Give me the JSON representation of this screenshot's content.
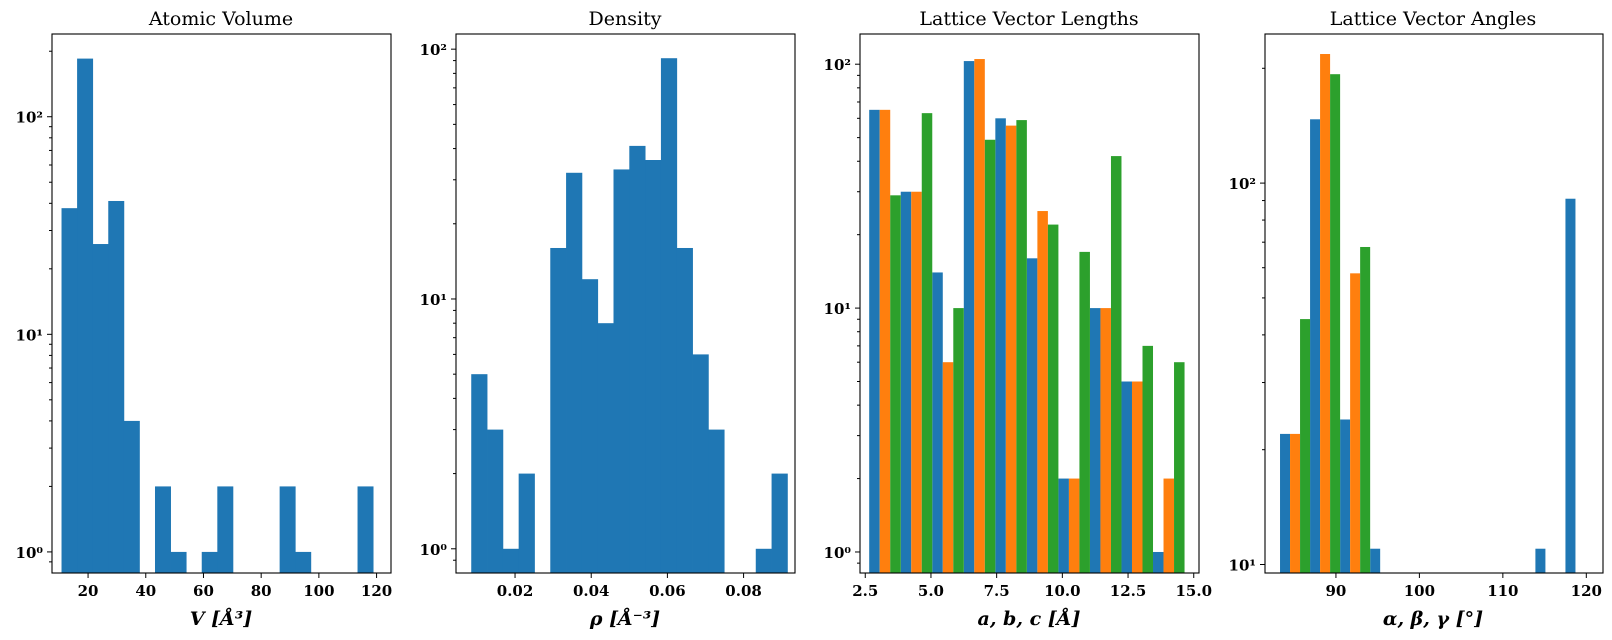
{
  "colors": {
    "blue": "#1f77b4",
    "orange": "#ff7f0e",
    "green": "#2ca02c"
  },
  "chart_data": [
    {
      "type": "bar",
      "title": "Atomic Volume",
      "xlabel": "V [Å³]",
      "yscale": "log",
      "xlim": [
        7.5,
        125
      ],
      "ylim": [
        0.8,
        240
      ],
      "xticks": [
        20,
        40,
        60,
        80,
        100,
        120
      ],
      "xtick_labels": [
        "20",
        "40",
        "60",
        "80",
        "100",
        "120"
      ],
      "yticks": [
        1,
        10,
        100
      ],
      "ytick_labels": [
        "10⁰",
        "10¹",
        "10²"
      ],
      "bin_width": 5.4,
      "series": [
        {
          "color": "blue",
          "bins": [
            {
              "x": 10.8,
              "v": 38
            },
            {
              "x": 16.2,
              "v": 185
            },
            {
              "x": 21.6,
              "v": 26
            },
            {
              "x": 27.0,
              "v": 41
            },
            {
              "x": 32.4,
              "v": 4
            },
            {
              "x": 43.2,
              "v": 2
            },
            {
              "x": 48.6,
              "v": 1
            },
            {
              "x": 59.4,
              "v": 1
            },
            {
              "x": 64.8,
              "v": 2
            },
            {
              "x": 86.4,
              "v": 2
            },
            {
              "x": 91.8,
              "v": 1
            },
            {
              "x": 113.4,
              "v": 2
            }
          ]
        }
      ]
    },
    {
      "type": "bar",
      "title": "Density",
      "xlabel": "ρ [Å⁻³]",
      "yscale": "log",
      "xlim": [
        0.0045,
        0.0935
      ],
      "ylim": [
        0.8,
        115
      ],
      "xticks": [
        0.02,
        0.04,
        0.06,
        0.08
      ],
      "xtick_labels": [
        "0.02",
        "0.04",
        "0.06",
        "0.08"
      ],
      "yticks": [
        1,
        10,
        100
      ],
      "ytick_labels": [
        "10⁰",
        "10¹",
        "10²"
      ],
      "bin_width": 0.00415,
      "series": [
        {
          "color": "blue",
          "bins": [
            {
              "x": 0.0085,
              "v": 5
            },
            {
              "x": 0.01265,
              "v": 3
            },
            {
              "x": 0.0168,
              "v": 1
            },
            {
              "x": 0.02095,
              "v": 2
            },
            {
              "x": 0.02925,
              "v": 16
            },
            {
              "x": 0.0334,
              "v": 32
            },
            {
              "x": 0.03755,
              "v": 12
            },
            {
              "x": 0.0417,
              "v": 8
            },
            {
              "x": 0.04585,
              "v": 33
            },
            {
              "x": 0.05,
              "v": 41
            },
            {
              "x": 0.05415,
              "v": 36
            },
            {
              "x": 0.0583,
              "v": 92
            },
            {
              "x": 0.06245,
              "v": 16
            },
            {
              "x": 0.0666,
              "v": 6
            },
            {
              "x": 0.07075,
              "v": 3
            },
            {
              "x": 0.0832,
              "v": 1
            },
            {
              "x": 0.08735,
              "v": 2
            }
          ]
        }
      ]
    },
    {
      "type": "bar",
      "title": "Lattice Vector Lengths",
      "xlabel": "a, b, c [Å]",
      "yscale": "log",
      "xlim": [
        2.3,
        15.2
      ],
      "ylim": [
        0.82,
        133
      ],
      "xticks": [
        2.5,
        5.0,
        7.5,
        10.0,
        12.5,
        15.0
      ],
      "xtick_labels": [
        "2.5",
        "5.0",
        "7.5",
        "10.0",
        "12.5",
        "15.0"
      ],
      "yticks": [
        1,
        10,
        100
      ],
      "ytick_labels": [
        "10⁰",
        "10¹",
        "10²"
      ],
      "bin_width": 1.2,
      "bin_starts": [
        2.65,
        3.85,
        5.05,
        6.25,
        7.45,
        8.65,
        9.85,
        11.05,
        12.25,
        13.45
      ],
      "series": [
        {
          "color": "blue",
          "values": [
            65,
            30,
            14,
            103,
            60,
            16,
            2,
            10,
            5,
            1
          ]
        },
        {
          "color": "orange",
          "values": [
            65,
            30,
            6,
            105,
            56,
            25,
            2,
            10,
            5,
            2
          ]
        },
        {
          "color": "green",
          "values": [
            29,
            63,
            10,
            49,
            59,
            22,
            17,
            42,
            7,
            6
          ]
        }
      ]
    },
    {
      "type": "bar",
      "title": "Lattice Vector Angles",
      "xlabel": "α, β, γ [°]",
      "yscale": "log",
      "xlim": [
        81.5,
        122
      ],
      "ylim": [
        9.5,
        246
      ],
      "xticks": [
        90,
        100,
        110,
        120
      ],
      "xtick_labels": [
        "90",
        "100",
        "110",
        "120"
      ],
      "yticks": [
        100,
        10
      ],
      "ytick_labels": [
        "10²",
        "10¹"
      ],
      "bin_width": 3.6,
      "bin_starts": [
        83.3,
        86.9,
        90.5,
        94.1,
        113.9,
        117.5
      ],
      "series": [
        {
          "color": "blue",
          "values": [
            22,
            147,
            24,
            11,
            11,
            91
          ]
        },
        {
          "color": "orange",
          "values": [
            22,
            218,
            58,
            0,
            0,
            0
          ]
        },
        {
          "color": "green",
          "values": [
            44,
            193,
            68,
            0,
            0,
            0
          ]
        }
      ]
    }
  ]
}
